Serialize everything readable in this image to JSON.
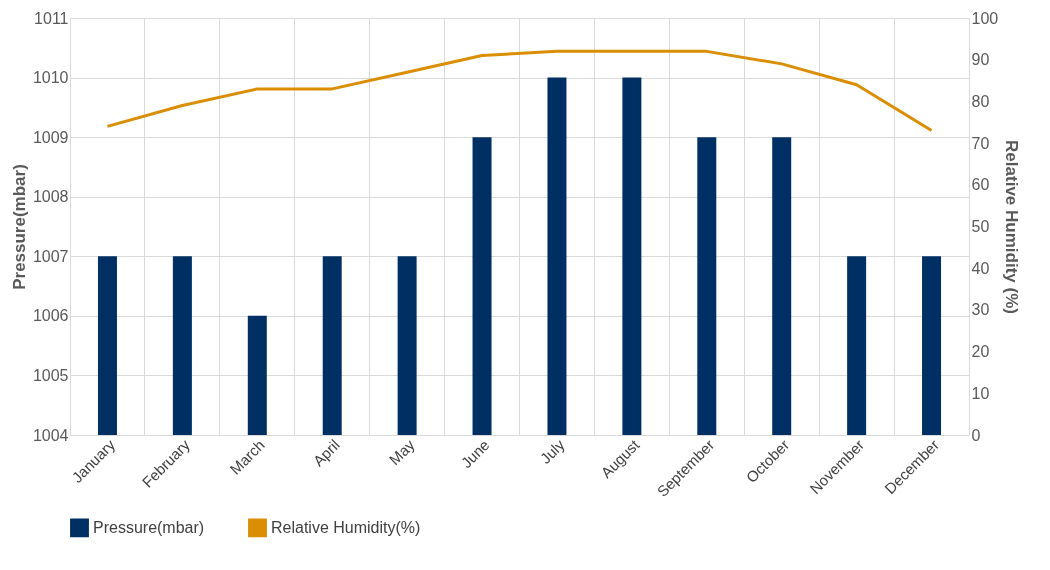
{
  "chart_data": {
    "type": "bar",
    "categories": [
      "January",
      "February",
      "March",
      "April",
      "May",
      "June",
      "July",
      "August",
      "September",
      "October",
      "November",
      "December"
    ],
    "series": [
      {
        "name": "Pressure(mbar)",
        "color": "#003063",
        "values": [
          1007,
          1007,
          1006,
          1007,
          1007,
          1009,
          1010,
          1010,
          1009,
          1009,
          1007,
          1007
        ]
      },
      {
        "name": "Relative Humidity(%)",
        "type": "line",
        "axis": "y2",
        "color": "#d98e04",
        "values": [
          74,
          79,
          83,
          83,
          87,
          91,
          92,
          92,
          92,
          89,
          84,
          73
        ]
      }
    ],
    "ylabel": "Pressure(mbar)",
    "y2label": "Relative Humidity (%)",
    "ylim": [
      1004,
      1011
    ],
    "yticks": [
      1004,
      1005,
      1006,
      1007,
      1008,
      1009,
      1010,
      1011
    ],
    "y2lim": [
      0,
      100
    ],
    "y2ticks": [
      0,
      10,
      20,
      30,
      40,
      50,
      60,
      70,
      80,
      90,
      100
    ],
    "grid": true,
    "legend": "bottom",
    "marker": "none",
    "line_style": "solid"
  }
}
